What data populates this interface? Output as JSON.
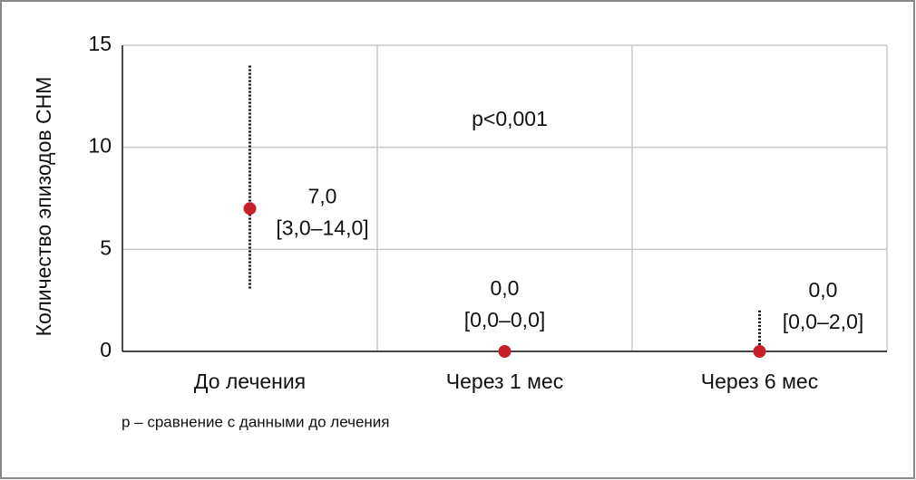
{
  "chart_data": {
    "type": "median-range",
    "y_label": "Количество эпизодов СНМ",
    "categories": [
      "До лечения",
      "Через 1 мес",
      "Через 6 мес"
    ],
    "medians": [
      7,
      0,
      0
    ],
    "lows": [
      3,
      0,
      0
    ],
    "highs": [
      14,
      0,
      2
    ],
    "value_labels": [
      "7,0",
      "0,0",
      "0,0"
    ],
    "range_labels": [
      "[3,0–14,0]",
      "[0,0–0,0]",
      "[0,0–2,0]"
    ],
    "annotation": "p<0,001",
    "footnote": "p – сравнение с данными до лечения",
    "ylim": [
      0,
      15
    ],
    "yticks": [
      0,
      5,
      10,
      15
    ],
    "grid": true,
    "color": "#c8202a"
  }
}
